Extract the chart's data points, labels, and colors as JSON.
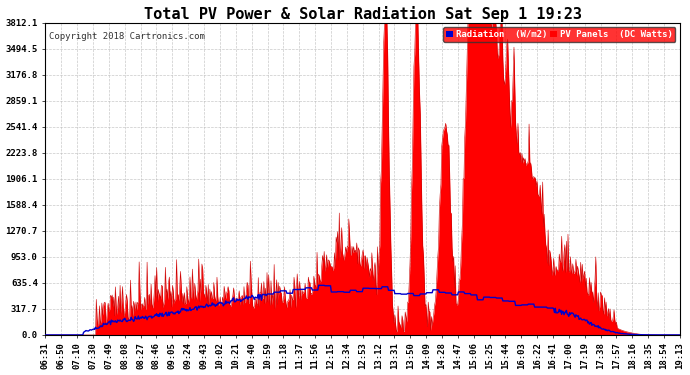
{
  "title": "Total PV Power & Solar Radiation Sat Sep 1 19:23",
  "copyright": "Copyright 2018 Cartronics.com",
  "yticks": [
    0.0,
    317.7,
    635.4,
    953.0,
    1270.7,
    1588.4,
    1906.1,
    2223.8,
    2541.4,
    2859.1,
    3176.8,
    3494.5,
    3812.1
  ],
  "ymax": 3812.1,
  "legend_labels": [
    "Radiation  (W/m2)",
    "PV Panels  (DC Watts)"
  ],
  "bg_color": "#ffffff",
  "plot_bg": "#ffffff",
  "title_fontsize": 11,
  "tick_fontsize": 6.5,
  "time_labels": [
    "06:31",
    "06:50",
    "07:10",
    "07:30",
    "07:49",
    "08:08",
    "08:27",
    "08:46",
    "09:05",
    "09:24",
    "09:43",
    "10:02",
    "10:21",
    "10:40",
    "10:59",
    "11:18",
    "11:37",
    "11:56",
    "12:15",
    "12:34",
    "12:53",
    "13:12",
    "13:31",
    "13:50",
    "14:09",
    "14:28",
    "14:47",
    "15:06",
    "15:25",
    "15:44",
    "16:03",
    "16:22",
    "16:41",
    "17:00",
    "17:19",
    "17:38",
    "17:57",
    "18:16",
    "18:35",
    "18:54",
    "19:13"
  ]
}
